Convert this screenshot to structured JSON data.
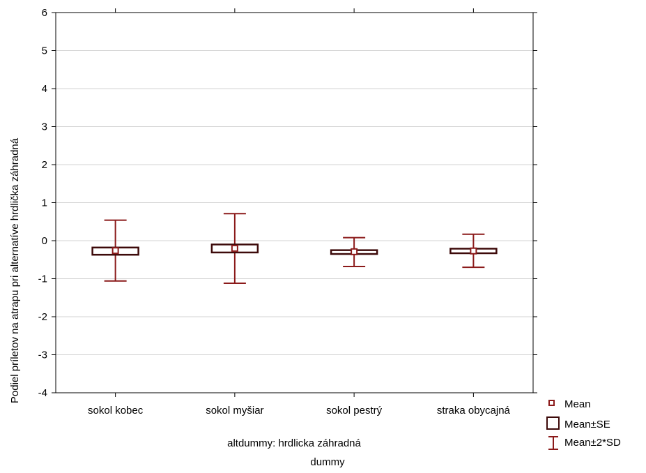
{
  "chart_data": {
    "type": "box",
    "categories": [
      "sokol kobec",
      "sokol myšiar",
      "sokol pestrý",
      "straka obycajná"
    ],
    "series": [
      {
        "name": "Mean",
        "values": [
          -0.26,
          -0.2,
          -0.29,
          -0.27
        ]
      },
      {
        "name": "Mean±SE",
        "lower": [
          -0.37,
          -0.31,
          -0.35,
          -0.33
        ],
        "upper": [
          -0.18,
          -0.1,
          -0.25,
          -0.21
        ]
      },
      {
        "name": "Mean±2*SD",
        "lower": [
          -1.06,
          -1.12,
          -0.68,
          -0.7
        ],
        "upper": [
          0.54,
          0.71,
          0.08,
          0.17
        ]
      }
    ],
    "ylim": [
      -4,
      6
    ],
    "yticks": [
      -4,
      -3,
      -2,
      -1,
      0,
      1,
      2,
      3,
      4,
      5,
      6
    ],
    "grid": true,
    "legend_position": "right-bottom",
    "xlabel": "altdummy: hrdlicka záhradná",
    "xlabel2": "dummy",
    "ylabel": "Podiel príletov na atrapu pri alternatíve hrdlička záhradná",
    "colors": {
      "whisker": "#8b1a1a",
      "box": "#3d0a0a",
      "mean_marker": "#8b1a1a",
      "grid": "#d3d3d3",
      "axis": "#000000"
    }
  }
}
